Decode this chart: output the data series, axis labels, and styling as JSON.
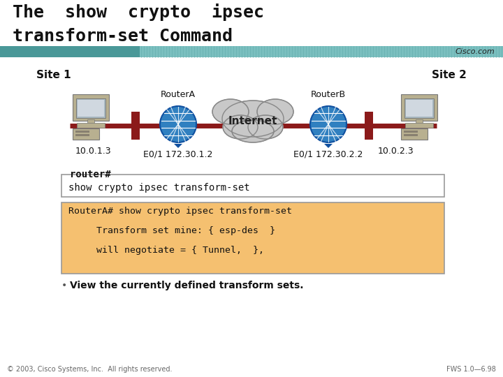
{
  "title_line1": "The  show  crypto  ipsec",
  "title_line2": "transform-set Command",
  "bg_color": "#ffffff",
  "teal_dark": "#4a9898",
  "teal_light": "#7abfbf",
  "site1_label": "Site 1",
  "site2_label": "Site 2",
  "router_a_label": "RouterA",
  "router_b_label": "RouterB",
  "internet_label": "Internet",
  "ip_site1": "10.0.1.3",
  "ip_site2": "10.0.2.3",
  "e01_left": "E0/1 172.30.1.2",
  "e01_right": "E0/1 172.30.2.2",
  "prompt_text": "router#",
  "cmd_box_text": "show crypto ipsec transform-set",
  "output_line1": "RouterA# show crypto ipsec transform-set",
  "output_line2": "     Transform set mine: { esp-des  }",
  "output_line3": "     will negotiate = { Tunnel,  },",
  "output_box_bg": "#f5c070",
  "bullet_text": "View the currently defined transform sets.",
  "footer_left": "© 2003, Cisco Systems, Inc.  All rights reserved.",
  "footer_right": "FWS 1.0—6.98",
  "cisco_com": "Cisco.com",
  "line_color": "#8B1a1a",
  "router_blue": "#3080c0",
  "router_blue_dark": "#1050a0",
  "cloud_gray": "#c8c8c8",
  "cloud_edge": "#a0a0a0",
  "comp_body": "#b8b090",
  "comp_screen": "#d0d8e0"
}
